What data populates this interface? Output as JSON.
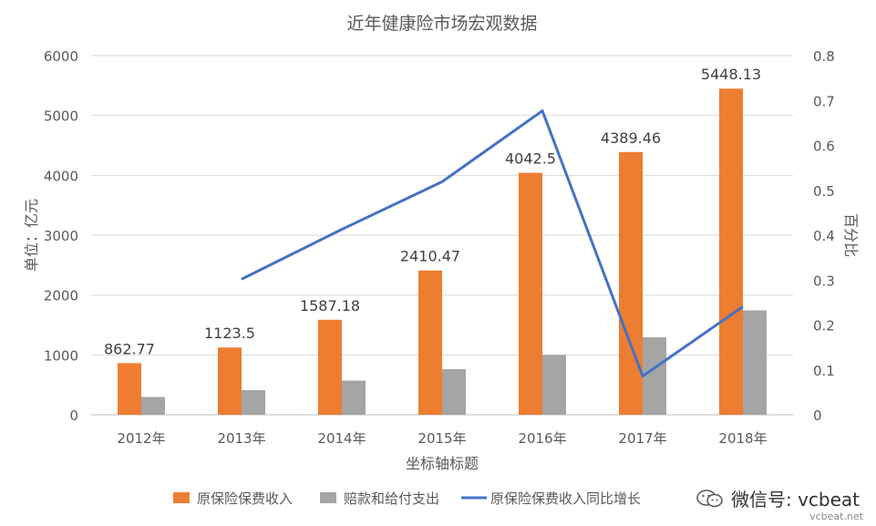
{
  "chart_data": {
    "type": "bar",
    "title": "近年健康险市场宏观数据",
    "categories": [
      "2012年",
      "2013年",
      "2014年",
      "2015年",
      "2016年",
      "2017年",
      "2018年"
    ],
    "xlabel": "坐标轴标题",
    "ylabel": "单位：亿元",
    "y2label": "百分比",
    "ylim": [
      0,
      6000
    ],
    "y2lim": [
      0,
      0.8
    ],
    "yticks": [
      "0",
      "1000",
      "2000",
      "3000",
      "4000",
      "5000",
      "6000"
    ],
    "y2ticks": [
      "0",
      "0.1",
      "0.2",
      "0.3",
      "0.4",
      "0.5",
      "0.6",
      "0.7",
      "0.8"
    ],
    "grid": true,
    "legend_position": "bottom",
    "series": [
      {
        "name": "原保险保费收入",
        "kind": "bar",
        "axis": "left",
        "color": "#ED7D31",
        "values": [
          862.77,
          1123.5,
          1587.18,
          2410.47,
          4042.5,
          4389.46,
          5448.13
        ],
        "labels": [
          "862.77",
          "1123.5",
          "1587.18",
          "2410.47",
          "4042.5",
          "4389.46",
          "5448.13"
        ]
      },
      {
        "name": "赔款和给付支出",
        "kind": "bar",
        "axis": "left",
        "color": "#A5A5A5",
        "values": [
          298,
          411,
          571,
          763,
          1001,
          1295,
          1744
        ]
      },
      {
        "name": "原保险保费收入同比增长",
        "kind": "line",
        "axis": "right",
        "color": "#4472C4",
        "values": [
          null,
          0.302,
          0.413,
          0.519,
          0.677,
          0.086,
          0.241
        ]
      }
    ]
  },
  "watermark": {
    "text": "微信号: vcbeat",
    "sub": "vcbeat.net",
    "icon": "wechat-icon"
  }
}
